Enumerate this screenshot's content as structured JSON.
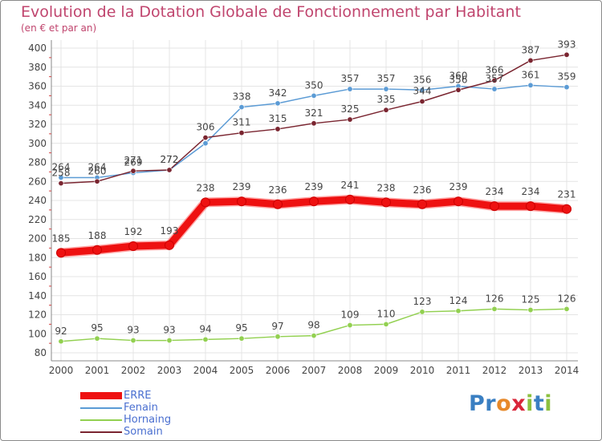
{
  "header": {
    "title": "Evolution de la Dotation Globale de Fonctionnement par Habitant",
    "subtitle": "(en € et par an)"
  },
  "logo": {
    "text": "Proxiti",
    "colors": [
      "#3a7fc2",
      "#3a7fc2",
      "#e7892a",
      "#d9263a",
      "#8cc03f",
      "#3a7fc2",
      "#8cc03f"
    ]
  },
  "chart_data": {
    "type": "line",
    "title": "Evolution de la Dotation Globale de Fonctionnement par Habitant",
    "subtitle": "(en € et par an)",
    "x": [
      2000,
      2001,
      2002,
      2003,
      2004,
      2005,
      2006,
      2007,
      2008,
      2009,
      2010,
      2011,
      2012,
      2013,
      2014
    ],
    "ylim": [
      80,
      400
    ],
    "yticks": [
      80,
      100,
      120,
      140,
      160,
      180,
      200,
      220,
      240,
      260,
      280,
      300,
      320,
      340,
      360,
      380,
      400
    ],
    "grid": true,
    "legend_position": "bottom-left",
    "series": [
      {
        "name": "ERRE",
        "color": "#ee1111",
        "values": [
          185,
          188,
          192,
          193,
          238,
          239,
          236,
          239,
          241,
          238,
          236,
          239,
          234,
          234,
          231
        ],
        "labels": [
          "185",
          "188",
          "192",
          "193",
          "238",
          "239",
          "236",
          "239",
          "241",
          "238",
          "236",
          "239",
          "234",
          "234",
          "231"
        ]
      },
      {
        "name": "Fenain",
        "color": "#5b9bd5",
        "values": [
          264,
          264,
          269,
          272,
          300,
          338,
          342,
          350,
          357,
          357,
          356,
          360,
          357,
          361,
          359
        ],
        "labels": [
          "264",
          "264",
          "269",
          "272",
          "",
          "338",
          "342",
          "350",
          "357",
          "357",
          "356",
          "360",
          "357",
          "361",
          "359"
        ]
      },
      {
        "name": "Hornaing",
        "color": "#92d050",
        "values": [
          92,
          95,
          93,
          93,
          94,
          95,
          97,
          98,
          109,
          110,
          123,
          124,
          126,
          125,
          126
        ],
        "labels": [
          "92",
          "95",
          "93",
          "93",
          "94",
          "95",
          "97",
          "98",
          "109",
          "110",
          "123",
          "124",
          "126",
          "125",
          "126"
        ]
      },
      {
        "name": "Somain",
        "color": "#7a2530",
        "values": [
          258,
          260,
          271,
          272,
          306,
          311,
          315,
          321,
          325,
          335,
          344,
          356,
          366,
          387,
          393
        ],
        "labels": [
          "258",
          "260",
          "271",
          "272",
          "306",
          "311",
          "315",
          "321",
          "325",
          "335",
          "344",
          "356",
          "366",
          "387",
          "393"
        ]
      }
    ]
  }
}
